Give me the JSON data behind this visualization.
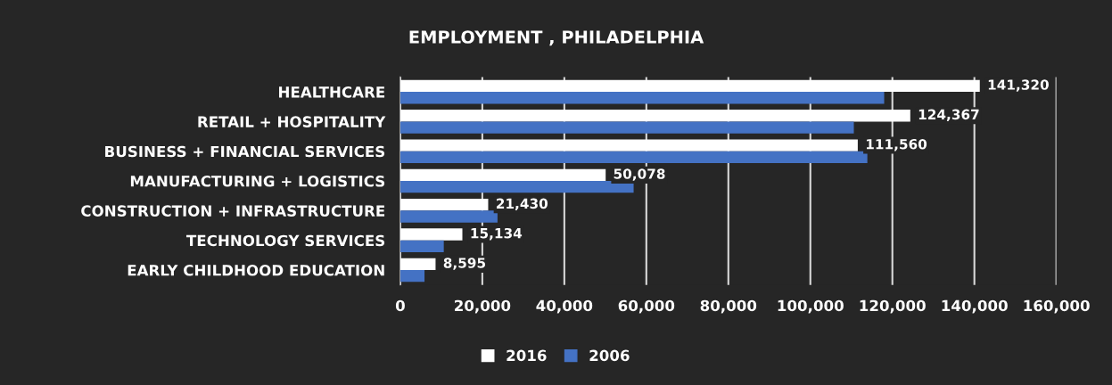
{
  "chart_data": {
    "type": "bar",
    "orientation": "horizontal",
    "title": "EMPLOYMENT , PHILADELPHIA",
    "categories": [
      "HEALTHCARE",
      "RETAIL + HOSPITALITY",
      "BUSINESS + FINANCIAL SERVICES",
      "MANUFACTURING + LOGISTICS",
      "CONSTRUCTION + INFRASTRUCTURE",
      "TECHNOLOGY SERVICES",
      "EARLY CHILDHOOD EDUCATION"
    ],
    "series": [
      {
        "name": "2016",
        "color": "#ffffff",
        "values": [
          141320,
          124367,
          111560,
          50078,
          21430,
          15134,
          8595
        ],
        "value_labels": [
          "141,320",
          "124,367",
          "111,560",
          "50,078",
          "21,430",
          "15,134",
          "8,595"
        ]
      },
      {
        "name": "2006",
        "color": "#4472c4",
        "values": [
          118000,
          110600,
          113900,
          56900,
          23700,
          10600,
          5900
        ]
      }
    ],
    "xlim": [
      0,
      160000
    ],
    "xticks": [
      0,
      {
        "value": 20000,
        "label": "20,000"
      },
      {
        "value": 40000,
        "label": "40,000"
      },
      {
        "value": 60000,
        "label": "60,000"
      },
      {
        "value": 80000,
        "label": "80,000"
      },
      {
        "value": 100000,
        "label": "100,000"
      },
      {
        "value": 120000,
        "label": "120,000"
      },
      {
        "value": 140000,
        "label": "140,000"
      },
      {
        "value": 160000,
        "label": "160,000"
      }
    ],
    "grid": "x",
    "legend": "bottom"
  }
}
